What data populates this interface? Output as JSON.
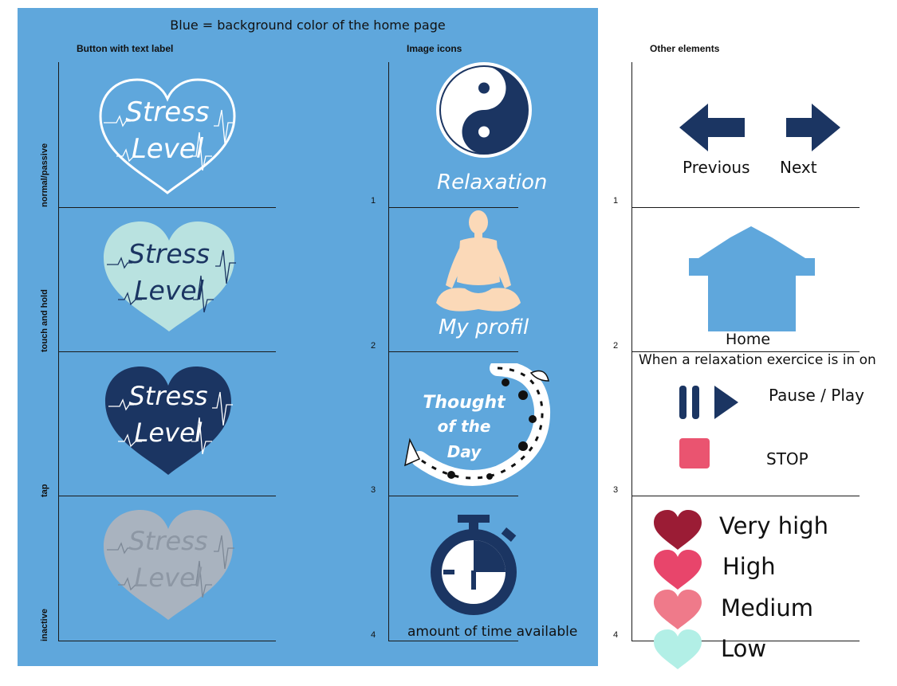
{
  "title": "Blue = background color of the home page",
  "columns": {
    "buttons": "Button with text label",
    "icons": "Image icons",
    "other": "Other elements"
  },
  "row_labels": [
    "normal/passive",
    "touch and hold",
    "tap",
    "inactive"
  ],
  "row_numbers": [
    "1",
    "2",
    "3",
    "4"
  ],
  "stress_button": {
    "line1": "Stress",
    "line2": "Level"
  },
  "icons": {
    "relaxation": "Relaxation",
    "my_profil": "My profil",
    "thought_line1": "Thought",
    "thought_line2": "of the",
    "thought_line3": "Day",
    "timer": "amount of time available"
  },
  "other": {
    "previous": "Previous",
    "next": "Next",
    "home": "Home",
    "relax_note": "When a relaxation exercice is in on",
    "pause_play": "Pause / Play",
    "stop": "STOP"
  },
  "levels": [
    {
      "label": "Very high",
      "color": "#9b1c35"
    },
    {
      "label": "High",
      "color": "#e8456b"
    },
    {
      "label": "Medium",
      "color": "#ef7a8a"
    },
    {
      "label": "Low",
      "color": "#b2efe6"
    }
  ],
  "colors": {
    "panel_blue": "#5fa7dc",
    "navy": "#1b3562",
    "mint": "#b9e2e0",
    "inactive_gray": "#a9b3bf",
    "skin": "#fbd9b8",
    "stop_red": "#ea5470"
  }
}
